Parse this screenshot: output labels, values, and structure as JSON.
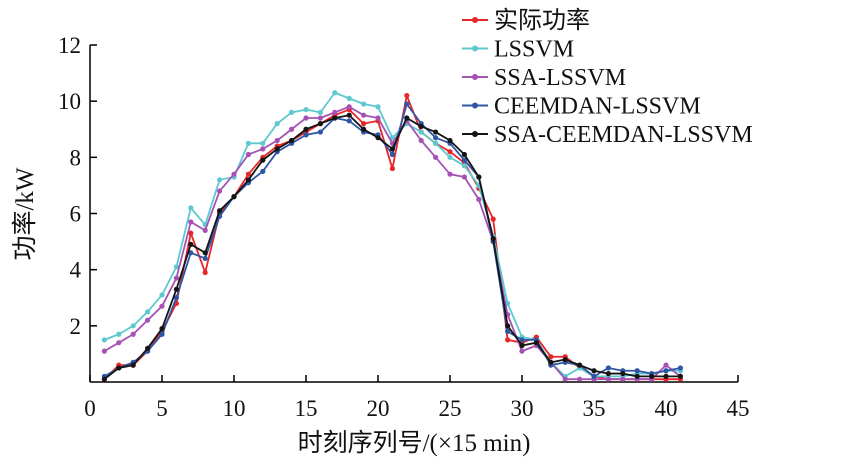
{
  "chart_data": {
    "type": "line",
    "title": "",
    "xlabel": "时刻序列号/(×15 min)",
    "ylabel": "功率/kW",
    "xlim": [
      0,
      45
    ],
    "ylim": [
      0,
      12
    ],
    "xticks": [
      "0",
      "5",
      "10",
      "15",
      "20",
      "25",
      "30",
      "35",
      "40",
      "45"
    ],
    "yticks": [
      "2",
      "4",
      "6",
      "8",
      "10",
      "12"
    ],
    "grid": false,
    "legend_position": "top-right",
    "x": [
      1,
      2,
      3,
      4,
      5,
      6,
      7,
      8,
      9,
      10,
      11,
      12,
      13,
      14,
      15,
      16,
      17,
      18,
      19,
      20,
      21,
      22,
      23,
      24,
      25,
      26,
      27,
      28,
      29,
      30,
      31,
      32,
      33,
      34,
      35,
      36,
      37,
      38,
      39,
      40,
      41
    ],
    "series": [
      {
        "name": "实际功率",
        "color": "#e8262a",
        "values": [
          0.1,
          0.6,
          0.6,
          1.1,
          1.8,
          2.8,
          5.3,
          3.9,
          6.0,
          6.6,
          7.4,
          8.0,
          8.4,
          8.6,
          8.9,
          9.2,
          9.5,
          9.7,
          9.2,
          9.3,
          7.6,
          10.2,
          8.9,
          8.5,
          8.2,
          7.8,
          6.9,
          5.8,
          1.5,
          1.4,
          1.6,
          0.9,
          0.9,
          0.5,
          0.2,
          0.1,
          0.1,
          0.1,
          0.1,
          0.1,
          0.1
        ]
      },
      {
        "name": "LSSVM",
        "color": "#5cc9d0",
        "values": [
          1.5,
          1.7,
          2.0,
          2.5,
          3.1,
          4.1,
          6.2,
          5.6,
          7.2,
          7.3,
          8.5,
          8.5,
          9.2,
          9.6,
          9.7,
          9.6,
          10.3,
          10.1,
          9.9,
          9.8,
          8.7,
          9.2,
          8.9,
          8.5,
          8.0,
          7.7,
          7.0,
          5.2,
          2.8,
          1.6,
          1.5,
          0.7,
          0.2,
          0.5,
          0.2,
          0.2,
          0.2,
          0.3,
          0.3,
          0.4,
          0.4
        ]
      },
      {
        "name": "SSA-LSSVM",
        "color": "#a552b5",
        "values": [
          1.1,
          1.4,
          1.7,
          2.2,
          2.7,
          3.7,
          5.7,
          5.4,
          6.8,
          7.4,
          8.1,
          8.3,
          8.6,
          9.0,
          9.4,
          9.4,
          9.6,
          9.8,
          9.5,
          9.4,
          8.5,
          9.3,
          8.6,
          8.0,
          7.4,
          7.3,
          6.5,
          5.0,
          2.4,
          1.1,
          1.3,
          0.7,
          0.1,
          0.1,
          0.1,
          0.1,
          0.1,
          0.1,
          0.1,
          0.6,
          0.2
        ]
      },
      {
        "name": "CEEMDAN-LSSVM",
        "color": "#2f56a4",
        "values": [
          0.2,
          0.5,
          0.7,
          1.1,
          1.7,
          3.0,
          4.6,
          4.4,
          5.9,
          6.6,
          7.1,
          7.5,
          8.2,
          8.5,
          8.8,
          8.9,
          9.4,
          9.3,
          8.9,
          8.8,
          8.1,
          9.9,
          9.2,
          8.7,
          8.5,
          7.9,
          7.3,
          5.0,
          1.8,
          1.5,
          1.5,
          0.6,
          0.7,
          0.6,
          0.2,
          0.5,
          0.4,
          0.4,
          0.3,
          0.4,
          0.5
        ]
      },
      {
        "name": "SSA-CEEMDAN-LSSVM",
        "color": "#151515",
        "values": [
          0.1,
          0.5,
          0.6,
          1.2,
          1.9,
          3.3,
          4.9,
          4.6,
          6.1,
          6.6,
          7.2,
          7.9,
          8.3,
          8.6,
          9.0,
          9.2,
          9.4,
          9.5,
          9.0,
          8.7,
          8.3,
          9.4,
          9.1,
          8.9,
          8.6,
          8.1,
          7.3,
          5.1,
          2.0,
          1.3,
          1.4,
          0.7,
          0.8,
          0.6,
          0.4,
          0.3,
          0.3,
          0.2,
          0.2,
          0.2,
          0.2
        ]
      }
    ]
  }
}
